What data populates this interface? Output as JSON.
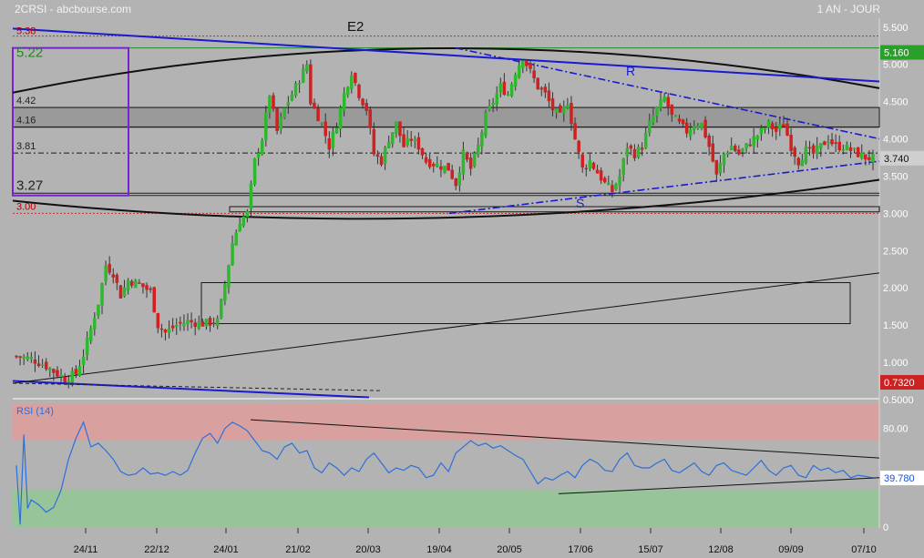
{
  "header": {
    "symbol_source": "2CRSI - abcbourse.com",
    "period": "1 AN - JOUR"
  },
  "colors": {
    "background": "#b3b3b3",
    "candle_up": "#2db82d",
    "candle_down": "#d02020",
    "trendline_blue": "#1a1ad0",
    "rsi_line": "#2e6fd8",
    "rsi_overbought_zone": "#d9a0a0",
    "rsi_oversold_zone": "#98c49a",
    "last_price_badge": "#2aa02a",
    "low_badge": "#cc2222",
    "level_box": "#7a22d0"
  },
  "chart_data": [
    {
      "type": "candlestick",
      "title": "",
      "x_ticks": [
        "24/11",
        "22/12",
        "24/01",
        "21/02",
        "20/03",
        "19/04",
        "20/05",
        "17/06",
        "15/07",
        "12/08",
        "09/09",
        "07/10"
      ],
      "y_ticks": [
        "0.5000",
        "1.000",
        "1.500",
        "2.000",
        "2.500",
        "3.000",
        "3.500",
        "4.000",
        "4.500",
        "5.000",
        "5.500"
      ],
      "ylim": [
        0.5,
        5.5
      ],
      "grid": false,
      "x_range_index": [
        0,
        230
      ],
      "level_labels": [
        {
          "label": "5.38",
          "value": 5.38,
          "color": "#b00000"
        },
        {
          "label": "5.22",
          "value": 5.22,
          "color": "#1a8c1a"
        },
        {
          "label": "4.42",
          "value": 4.42,
          "color": "#222222"
        },
        {
          "label": "4.16",
          "value": 4.16,
          "color": "#222222"
        },
        {
          "label": "3.81",
          "value": 3.81,
          "color": "#222222"
        },
        {
          "label": "3.27",
          "value": 3.27,
          "color": "#222222"
        },
        {
          "label": "3.00",
          "value": 3.0,
          "color": "#b00000"
        }
      ],
      "annotations": [
        "E2",
        "R",
        "S"
      ],
      "price_badges": [
        {
          "label": "5.160",
          "value": 5.16,
          "kind": "green"
        },
        {
          "label": "3.740",
          "value": 3.74,
          "kind": "plain"
        },
        {
          "label": "0.7320",
          "value": 0.732,
          "kind": "red"
        }
      ],
      "candle_anchors": [
        [
          0,
          1.08
        ],
        [
          4,
          1.05
        ],
        [
          8,
          0.95
        ],
        [
          10,
          0.88
        ],
        [
          13,
          0.78
        ],
        [
          16,
          0.85
        ],
        [
          18,
          1.1
        ],
        [
          20,
          1.45
        ],
        [
          22,
          1.8
        ],
        [
          24,
          2.3
        ],
        [
          26,
          2.2
        ],
        [
          28,
          1.9
        ],
        [
          30,
          2.1
        ],
        [
          33,
          2.05
        ],
        [
          36,
          1.95
        ],
        [
          38,
          1.5
        ],
        [
          40,
          1.4
        ],
        [
          43,
          1.5
        ],
        [
          46,
          1.55
        ],
        [
          50,
          1.52
        ],
        [
          54,
          1.55
        ],
        [
          56,
          2.05
        ],
        [
          58,
          2.6
        ],
        [
          60,
          2.9
        ],
        [
          62,
          3.0
        ],
        [
          64,
          3.7
        ],
        [
          66,
          4.0
        ],
        [
          68,
          4.6
        ],
        [
          70,
          4.1
        ],
        [
          72,
          4.4
        ],
        [
          74,
          4.6
        ],
        [
          76,
          4.8
        ],
        [
          78,
          5.0
        ],
        [
          79,
          4.5
        ],
        [
          82,
          4.2
        ],
        [
          84,
          3.9
        ],
        [
          86,
          4.2
        ],
        [
          88,
          4.6
        ],
        [
          90,
          4.9
        ],
        [
          92,
          4.6
        ],
        [
          94,
          4.4
        ],
        [
          96,
          3.8
        ],
        [
          98,
          3.7
        ],
        [
          100,
          4.0
        ],
        [
          102,
          4.2
        ],
        [
          104,
          3.9
        ],
        [
          106,
          4.0
        ],
        [
          108,
          3.9
        ],
        [
          110,
          3.7
        ],
        [
          113,
          3.65
        ],
        [
          116,
          3.6
        ],
        [
          118,
          3.4
        ],
        [
          120,
          3.8
        ],
        [
          122,
          3.6
        ],
        [
          124,
          3.9
        ],
        [
          126,
          4.3
        ],
        [
          128,
          4.5
        ],
        [
          130,
          4.7
        ],
        [
          132,
          4.6
        ],
        [
          134,
          4.9
        ],
        [
          136,
          5.1
        ],
        [
          138,
          4.9
        ],
        [
          140,
          4.7
        ],
        [
          142,
          4.6
        ],
        [
          144,
          4.4
        ],
        [
          146,
          4.3
        ],
        [
          148,
          4.5
        ],
        [
          150,
          4.0
        ],
        [
          152,
          3.6
        ],
        [
          154,
          3.7
        ],
        [
          156,
          3.55
        ],
        [
          158,
          3.4
        ],
        [
          160,
          3.3
        ],
        [
          162,
          3.5
        ],
        [
          164,
          3.9
        ],
        [
          166,
          3.8
        ],
        [
          168,
          3.9
        ],
        [
          170,
          4.2
        ],
        [
          172,
          4.4
        ],
        [
          174,
          4.55
        ],
        [
          176,
          4.3
        ],
        [
          178,
          4.2
        ],
        [
          180,
          4.1
        ],
        [
          182,
          4.2
        ],
        [
          184,
          4.2
        ],
        [
          186,
          3.9
        ],
        [
          188,
          3.5
        ],
        [
          190,
          3.8
        ],
        [
          192,
          3.9
        ],
        [
          194,
          3.8
        ],
        [
          196,
          3.9
        ],
        [
          198,
          4.0
        ],
        [
          200,
          4.1
        ],
        [
          202,
          4.2
        ],
        [
          204,
          4.1
        ],
        [
          206,
          4.2
        ],
        [
          208,
          3.9
        ],
        [
          210,
          3.7
        ],
        [
          212,
          3.85
        ],
        [
          214,
          3.8
        ],
        [
          216,
          3.9
        ],
        [
          218,
          4.0
        ],
        [
          220,
          3.9
        ],
        [
          222,
          3.9
        ],
        [
          224,
          3.85
        ],
        [
          226,
          3.8
        ],
        [
          228,
          3.75
        ],
        [
          230,
          3.74
        ]
      ]
    },
    {
      "type": "line",
      "title": "RSI (14)",
      "y_ticks": [
        "0",
        "80.00"
      ],
      "ylim": [
        0,
        100
      ],
      "overbought": 70,
      "oversold": 30,
      "badge": {
        "label": "39.780",
        "value": 39.78
      },
      "series": [
        {
          "x": [
            0,
            1,
            2,
            3,
            4,
            6,
            8,
            10,
            12,
            14,
            16,
            18,
            20,
            22,
            24,
            26,
            28,
            30,
            32,
            34,
            36,
            38,
            40,
            42,
            44,
            46,
            48,
            50,
            52,
            54,
            56,
            58,
            60,
            62,
            64,
            66,
            68,
            70,
            72,
            74,
            76,
            78,
            80,
            82,
            84,
            86,
            88,
            90,
            92,
            94,
            96,
            98,
            100,
            102,
            104,
            106,
            108,
            110,
            112,
            114,
            116,
            118,
            120,
            122,
            124,
            126,
            128,
            130,
            132,
            134,
            136,
            138,
            140,
            142,
            144,
            146,
            148,
            150,
            152,
            154,
            156,
            158,
            160,
            162,
            164,
            166,
            168,
            170,
            172,
            174,
            176,
            178,
            180,
            182,
            184,
            186,
            188,
            190,
            192,
            194,
            196,
            198,
            200,
            202,
            204,
            206,
            208,
            210,
            212,
            214,
            216,
            218,
            220,
            222,
            224,
            226,
            228,
            230
          ],
          "values": [
            50,
            2,
            75,
            15,
            22,
            18,
            12,
            16,
            30,
            55,
            72,
            85,
            65,
            68,
            62,
            55,
            45,
            42,
            43,
            48,
            43,
            44,
            42,
            45,
            42,
            46,
            60,
            72,
            76,
            68,
            80,
            85,
            82,
            78,
            70,
            62,
            60,
            55,
            65,
            68,
            60,
            62,
            48,
            44,
            52,
            48,
            42,
            48,
            45,
            55,
            60,
            52,
            44,
            48,
            46,
            50,
            48,
            40,
            42,
            52,
            45,
            60,
            65,
            70,
            66,
            68,
            64,
            66,
            62,
            58,
            55,
            45,
            35,
            40,
            38,
            42,
            45,
            40,
            50,
            55,
            52,
            46,
            45,
            55,
            60,
            50,
            48,
            48,
            52,
            55,
            46,
            44,
            48,
            52,
            45,
            42,
            50,
            52,
            46,
            44,
            42,
            48,
            54,
            46,
            42,
            48,
            50,
            42,
            40,
            50,
            46,
            48,
            44,
            46,
            40,
            42,
            41,
            39.78
          ]
        }
      ]
    }
  ]
}
